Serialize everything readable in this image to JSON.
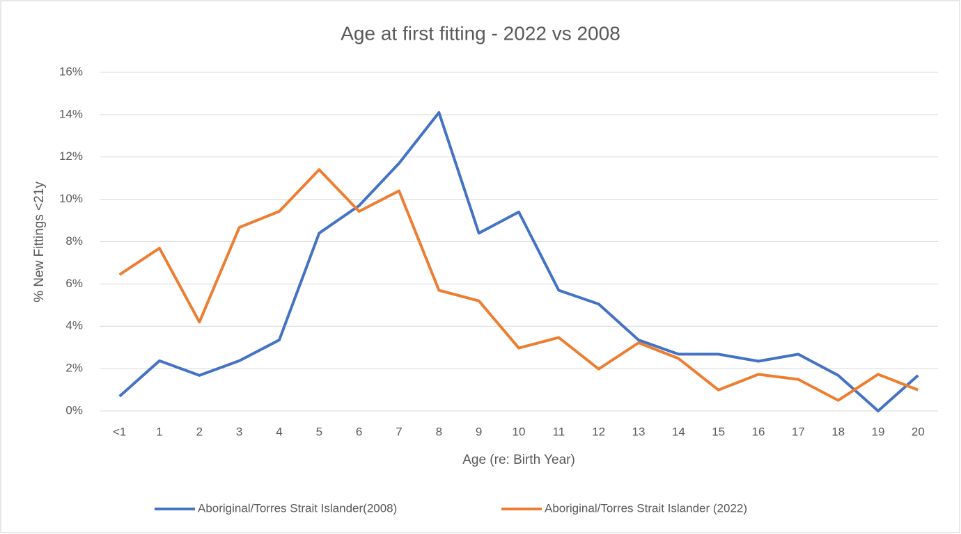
{
  "chart_data": {
    "type": "line",
    "title": "Age at first fitting - 2022 vs 2008",
    "x_label": "Age (re: Birth Year)",
    "y_label": "% New Fittings <21y",
    "categories": [
      "<1",
      "1",
      "2",
      "3",
      "4",
      "5",
      "6",
      "7",
      "8",
      "9",
      "10",
      "11",
      "12",
      "13",
      "14",
      "15",
      "16",
      "17",
      "18",
      "19",
      "20"
    ],
    "series": [
      {
        "name": "Aboriginal/Torres Strait Islander(2008)",
        "color": "#4472c4",
        "values": [
          0.69,
          2.37,
          1.68,
          2.37,
          3.35,
          8.4,
          9.7,
          11.7,
          14.1,
          8.4,
          9.4,
          5.7,
          5.05,
          3.35,
          2.68,
          2.68,
          2.35,
          2.68,
          1.68,
          0,
          1.68
        ]
      },
      {
        "name": "Aboriginal/Torres Strait Islander (2022)",
        "color": "#ed7d31",
        "values": [
          6.44,
          7.69,
          4.2,
          8.67,
          9.43,
          11.4,
          9.43,
          10.4,
          5.7,
          5.2,
          2.97,
          3.47,
          1.98,
          3.22,
          2.48,
          0.99,
          1.73,
          1.49,
          0.5,
          1.73,
          0.99
        ]
      }
    ],
    "ylim": [
      0,
      16
    ],
    "yticks": [
      {
        "value": 0,
        "label": "0%"
      },
      {
        "value": 2,
        "label": "2%"
      },
      {
        "value": 4,
        "label": "4%"
      },
      {
        "value": 6,
        "label": "6%"
      },
      {
        "value": 8,
        "label": "8%"
      },
      {
        "value": 10,
        "label": "10%"
      },
      {
        "value": 12,
        "label": "12%"
      },
      {
        "value": 14,
        "label": "14%"
      },
      {
        "value": 16,
        "label": "16%"
      }
    ],
    "grid": true,
    "legend": "bottom"
  }
}
